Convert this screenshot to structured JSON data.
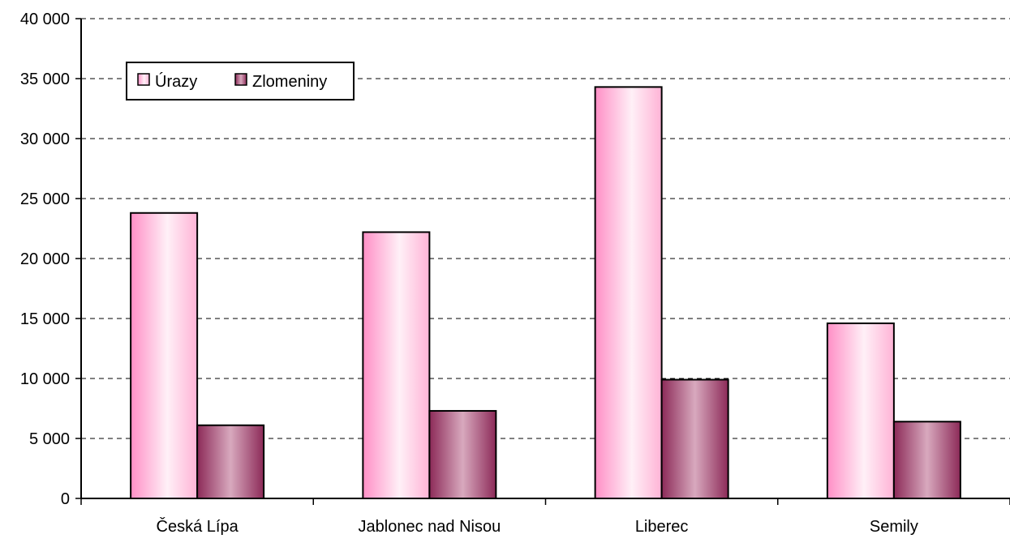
{
  "chart_data": {
    "type": "bar",
    "categories": [
      "Česká Lípa",
      "Jablonec nad Nisou",
      "Liberec",
      "Semily"
    ],
    "series": [
      {
        "name": "Úrazy",
        "values": [
          23800,
          22200,
          34300,
          14600
        ],
        "color": "#ff99cc"
      },
      {
        "name": "Zlomeniny",
        "values": [
          6100,
          7300,
          9900,
          6400
        ],
        "color": "#993366"
      }
    ],
    "ylim": [
      0,
      40000
    ],
    "yticks": [
      0,
      5000,
      10000,
      15000,
      20000,
      25000,
      30000,
      35000,
      40000
    ],
    "ytick_labels": [
      "0",
      "5 000",
      "10 000",
      "15 000",
      "20 000",
      "25 000",
      "30 000",
      "35 000",
      "40 000"
    ],
    "grid": true,
    "legend_position": "top-left"
  }
}
